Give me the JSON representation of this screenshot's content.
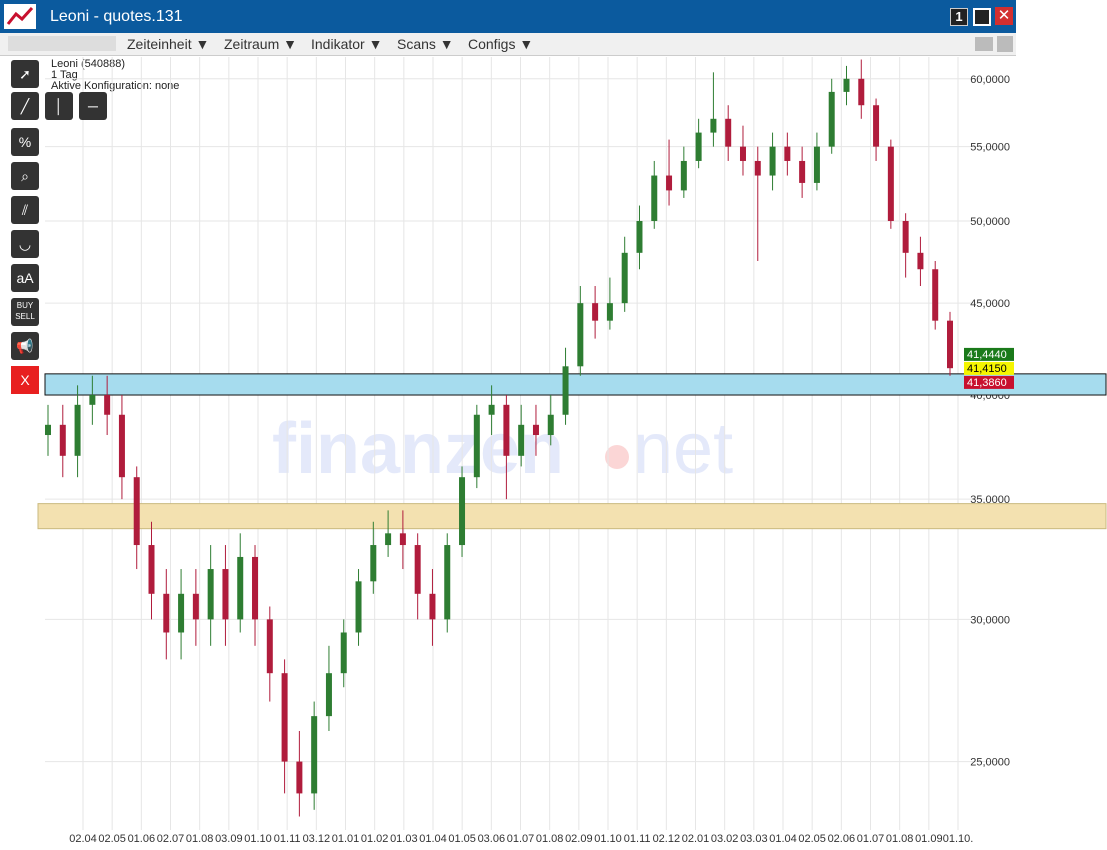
{
  "window": {
    "title": "Leoni - quotes.131",
    "badge": "1",
    "menu": [
      "Zeiteinheit ▼",
      "Zeitraum ▼",
      "Indikator ▼",
      "Scans ▼",
      "Configs ▼"
    ],
    "tools": {
      "percent": "%",
      "text": "aA",
      "buy": "BUY",
      "sell": "SELL",
      "close": "X"
    }
  },
  "chart_data": {
    "type": "candlestick",
    "info": [
      "Leoni (540888)",
      "1 Tag",
      "Aktive Konfiguration: none"
    ],
    "watermark": [
      "finanzen",
      "net"
    ],
    "log_scale": true,
    "grid": true,
    "up_color": "#2e7d32",
    "down_color": "#b01c3c",
    "ylim": [
      22.9,
      61.7
    ],
    "yticks": [
      {
        "value": 25,
        "label": "25,0000"
      },
      {
        "value": 30,
        "label": "30,0000"
      },
      {
        "value": 35,
        "label": "35,0000"
      },
      {
        "value": 40,
        "label": "40,0000"
      },
      {
        "value": 45,
        "label": "45,0000"
      },
      {
        "value": 50,
        "label": "50,0000"
      },
      {
        "value": 55,
        "label": "55,0000"
      },
      {
        "value": 60,
        "label": "60,0000"
      }
    ],
    "x_labels": [
      "02.04",
      "02.05",
      "01.06",
      "02.07",
      "01.08",
      "03.09",
      "01.10",
      "01.11",
      "03.12",
      "01.01",
      "01.02",
      "01.03",
      "01.04",
      "01.05",
      "03.06",
      "01.07",
      "01.08",
      "02.09",
      "01.10",
      "01.11",
      "02.12",
      "02.01",
      "03.02",
      "03.03",
      "01.04",
      "02.05",
      "02.06",
      "01.07",
      "01.08",
      "01.09",
      "01.10."
    ],
    "open": [
      38.0,
      38.5,
      37.0,
      39.5,
      40.0,
      39.0,
      36.0,
      33.0,
      31.0,
      29.5,
      31.0,
      30.0,
      32.0,
      30.0,
      32.5,
      30.0,
      28.0,
      25.0,
      24.0,
      26.5,
      28.0,
      29.5,
      31.5,
      33.0,
      33.5,
      33.0,
      31.0,
      30.0,
      33.0,
      36.0,
      39.0,
      39.5,
      37.0,
      38.5,
      38.0,
      39.0,
      41.5,
      45.0,
      44.0,
      45.0,
      48.0,
      50.0,
      53.0,
      52.0,
      54.0,
      56.0,
      57.0,
      55.0,
      54.0,
      53.0,
      55.0,
      54.0,
      52.5,
      55.0,
      59.0,
      60.0,
      58.0,
      55.0,
      50.0,
      48.0,
      47.0,
      44.0
    ],
    "high": [
      39.5,
      39.5,
      40.5,
      41.0,
      41.0,
      40.0,
      36.5,
      34.0,
      32.0,
      32.0,
      32.0,
      33.0,
      33.0,
      33.5,
      33.0,
      30.5,
      28.5,
      26.0,
      27.0,
      29.0,
      30.0,
      32.0,
      34.0,
      34.5,
      34.5,
      33.5,
      32.0,
      33.5,
      36.5,
      39.5,
      40.5,
      40.0,
      39.5,
      39.5,
      40.0,
      42.5,
      46.0,
      46.0,
      46.5,
      49.0,
      51.0,
      54.0,
      55.5,
      55.0,
      57.0,
      60.5,
      58.0,
      56.5,
      55.0,
      56.0,
      56.0,
      55.0,
      56.0,
      60.0,
      61.0,
      61.5,
      58.5,
      55.5,
      50.5,
      49.0,
      47.5,
      44.5
    ],
    "low": [
      37.0,
      36.0,
      36.0,
      38.5,
      38.0,
      35.0,
      32.0,
      30.0,
      28.5,
      28.5,
      29.0,
      29.0,
      29.0,
      29.5,
      29.0,
      27.0,
      24.0,
      23.3,
      23.5,
      26.0,
      27.5,
      29.0,
      31.0,
      32.5,
      32.0,
      30.0,
      29.0,
      29.5,
      32.5,
      35.5,
      38.0,
      35.0,
      36.5,
      37.0,
      37.5,
      38.5,
      41.0,
      43.0,
      43.5,
      44.5,
      47.0,
      49.5,
      51.0,
      51.5,
      53.5,
      55.0,
      54.0,
      53.0,
      47.5,
      52.0,
      53.0,
      51.5,
      52.0,
      54.5,
      58.0,
      57.0,
      54.0,
      49.5,
      46.5,
      46.0,
      43.5,
      41.0
    ],
    "close": [
      38.5,
      37.0,
      39.5,
      40.0,
      39.0,
      36.0,
      33.0,
      31.0,
      29.5,
      31.0,
      30.0,
      32.0,
      30.0,
      32.5,
      30.0,
      28.0,
      25.0,
      24.0,
      26.5,
      28.0,
      29.5,
      31.5,
      33.0,
      33.5,
      33.0,
      31.0,
      30.0,
      33.0,
      36.0,
      39.0,
      39.5,
      37.0,
      38.5,
      38.0,
      39.0,
      41.5,
      45.0,
      44.0,
      45.0,
      48.0,
      50.0,
      53.0,
      52.0,
      54.0,
      56.0,
      57.0,
      55.0,
      54.0,
      53.0,
      55.0,
      54.0,
      52.5,
      55.0,
      59.0,
      60.0,
      58.0,
      55.0,
      50.0,
      48.0,
      47.0,
      44.0,
      41.4
    ],
    "zones": [
      {
        "from": 40.0,
        "to": 41.1,
        "color": "#a6dcee"
      },
      {
        "from": 33.7,
        "to": 34.8,
        "color": "#f3e1b0"
      }
    ],
    "price_tags": [
      {
        "value": 41.444,
        "label": "41,4440",
        "color": "#1a7a1a"
      },
      {
        "value": 41.415,
        "label": "41,4150",
        "color": "#f5f500"
      },
      {
        "value": 41.386,
        "label": "41,3860",
        "color": "#c8102e"
      }
    ]
  }
}
